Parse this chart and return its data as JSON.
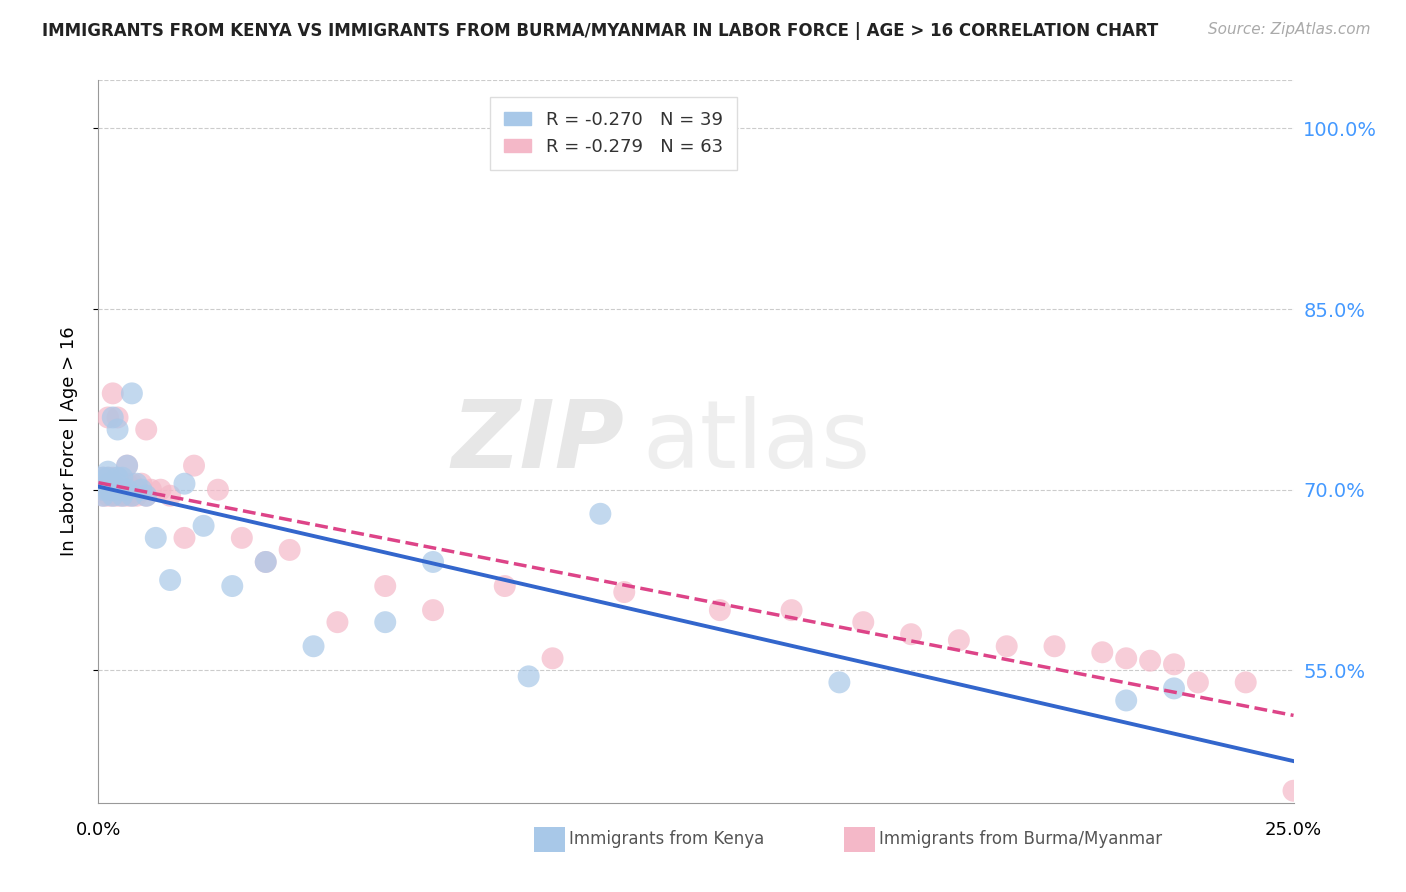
{
  "title": "IMMIGRANTS FROM KENYA VS IMMIGRANTS FROM BURMA/MYANMAR IN LABOR FORCE | AGE > 16 CORRELATION CHART",
  "source": "Source: ZipAtlas.com",
  "ylabel": "In Labor Force | Age > 16",
  "yticks": [
    0.55,
    0.7,
    0.85,
    1.0
  ],
  "ytick_labels": [
    "55.0%",
    "70.0%",
    "85.0%",
    "100.0%"
  ],
  "xlim": [
    0.0,
    0.25
  ],
  "ylim": [
    0.44,
    1.04
  ],
  "legend1_r": "R = -0.270",
  "legend1_n": "N = 39",
  "legend2_r": "R = -0.279",
  "legend2_n": "N = 63",
  "color_kenya": "#a8c8e8",
  "color_burma": "#f4b8c8",
  "trendline_color_kenya": "#3366cc",
  "trendline_color_burma": "#dd4488",
  "watermark_zip": "ZIP",
  "watermark_atlas": "atlas",
  "background_color": "#ffffff",
  "kenya_x": [
    0.001,
    0.001,
    0.001,
    0.002,
    0.002,
    0.002,
    0.002,
    0.003,
    0.003,
    0.003,
    0.003,
    0.004,
    0.004,
    0.004,
    0.004,
    0.005,
    0.005,
    0.005,
    0.006,
    0.006,
    0.007,
    0.007,
    0.008,
    0.009,
    0.01,
    0.012,
    0.015,
    0.018,
    0.022,
    0.028,
    0.035,
    0.045,
    0.06,
    0.07,
    0.09,
    0.105,
    0.155,
    0.215,
    0.225
  ],
  "kenya_y": [
    0.695,
    0.7,
    0.71,
    0.7,
    0.705,
    0.71,
    0.715,
    0.695,
    0.7,
    0.705,
    0.76,
    0.7,
    0.705,
    0.71,
    0.75,
    0.695,
    0.7,
    0.71,
    0.7,
    0.72,
    0.695,
    0.78,
    0.705,
    0.7,
    0.695,
    0.66,
    0.625,
    0.705,
    0.67,
    0.62,
    0.64,
    0.57,
    0.59,
    0.64,
    0.545,
    0.68,
    0.54,
    0.525,
    0.535
  ],
  "burma_x": [
    0.001,
    0.001,
    0.001,
    0.001,
    0.002,
    0.002,
    0.002,
    0.002,
    0.002,
    0.003,
    0.003,
    0.003,
    0.003,
    0.003,
    0.004,
    0.004,
    0.004,
    0.004,
    0.004,
    0.005,
    0.005,
    0.005,
    0.006,
    0.006,
    0.006,
    0.006,
    0.007,
    0.007,
    0.007,
    0.008,
    0.008,
    0.009,
    0.01,
    0.01,
    0.011,
    0.013,
    0.015,
    0.018,
    0.02,
    0.025,
    0.03,
    0.035,
    0.04,
    0.05,
    0.06,
    0.07,
    0.085,
    0.095,
    0.11,
    0.13,
    0.145,
    0.16,
    0.17,
    0.18,
    0.19,
    0.2,
    0.21,
    0.215,
    0.22,
    0.225,
    0.23,
    0.24,
    0.25
  ],
  "burma_y": [
    0.695,
    0.7,
    0.705,
    0.71,
    0.695,
    0.7,
    0.705,
    0.71,
    0.76,
    0.695,
    0.7,
    0.705,
    0.71,
    0.78,
    0.695,
    0.7,
    0.705,
    0.76,
    0.71,
    0.695,
    0.7,
    0.705,
    0.695,
    0.7,
    0.705,
    0.72,
    0.695,
    0.7,
    0.705,
    0.695,
    0.7,
    0.705,
    0.695,
    0.75,
    0.7,
    0.7,
    0.695,
    0.66,
    0.72,
    0.7,
    0.66,
    0.64,
    0.65,
    0.59,
    0.62,
    0.6,
    0.62,
    0.56,
    0.615,
    0.6,
    0.6,
    0.59,
    0.58,
    0.575,
    0.57,
    0.57,
    0.565,
    0.56,
    0.558,
    0.555,
    0.54,
    0.54,
    0.45
  ]
}
